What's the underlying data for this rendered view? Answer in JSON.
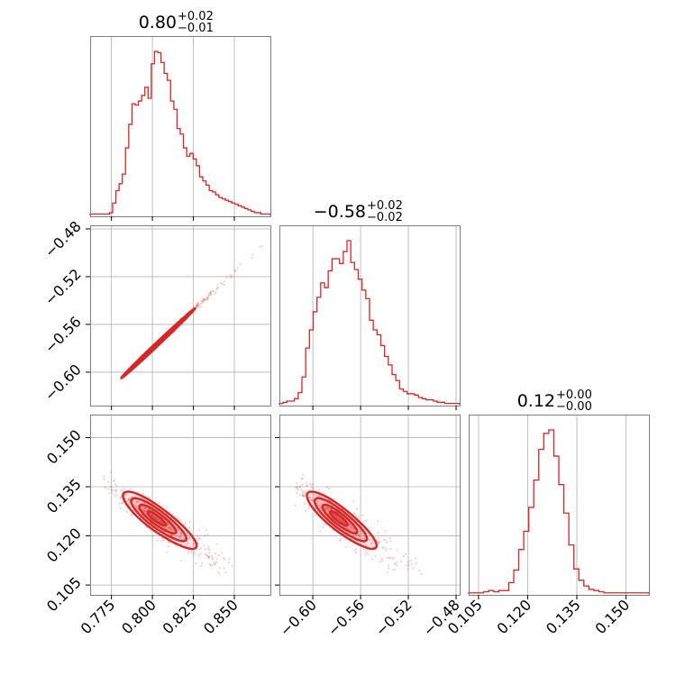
{
  "chart_data": {
    "type": "corner",
    "color": "#d62728",
    "parameters": [
      {
        "name": "",
        "range": [
          0.762,
          0.872
        ],
        "ticks": [
          0.775,
          0.8,
          0.825,
          0.85
        ],
        "tick_labels": [
          "0.775",
          "0.800",
          "0.825",
          "0.850"
        ],
        "title": {
          "value": "0.80",
          "upper": "+0.02",
          "lower": "−0.01"
        }
      },
      {
        "name": "",
        "range": [
          -0.628,
          -0.477
        ],
        "ticks": [
          -0.6,
          -0.56,
          -0.52,
          -0.48
        ],
        "tick_labels": [
          "−0.60",
          "−0.56",
          "−0.52",
          "−0.48"
        ],
        "title": {
          "value": "−0.58",
          "upper": "+0.02",
          "lower": "−0.02"
        }
      },
      {
        "name": "",
        "range": [
          0.102,
          0.157
        ],
        "ticks": [
          0.105,
          0.12,
          0.135,
          0.15
        ],
        "tick_labels": [
          "0.105",
          "0.120",
          "0.135",
          "0.150"
        ],
        "title": {
          "value": "0.12",
          "upper": "+0.00",
          "lower": "−0.00"
        }
      }
    ],
    "histograms": [
      {
        "x_start": 0.762,
        "x_end": 0.872,
        "counts": [
          1,
          1,
          1,
          1,
          1,
          1,
          2,
          9,
          18,
          23,
          30,
          49,
          66,
          81,
          80,
          83,
          87,
          93,
          85,
          110,
          119,
          118,
          111,
          103,
          98,
          83,
          77,
          63,
          59,
          49,
          43,
          45,
          41,
          36,
          28,
          25,
          22,
          18,
          17,
          15,
          13,
          12,
          11,
          10,
          9,
          8,
          7,
          6,
          5,
          4,
          3,
          2,
          2,
          1,
          1,
          1
        ]
      },
      {
        "x_start": -0.628,
        "x_end": -0.477,
        "counts": [
          1,
          2,
          3,
          3,
          5,
          10,
          23,
          47,
          62,
          77,
          89,
          101,
          97,
          111,
          121,
          121,
          117,
          127,
          136,
          118,
          112,
          104,
          95,
          88,
          70,
          62,
          58,
          49,
          40,
          33,
          25,
          20,
          13,
          11,
          9,
          9,
          8,
          6,
          5,
          4,
          4,
          3,
          2,
          2,
          1,
          1,
          1,
          1
        ]
      },
      {
        "x_start": 0.102,
        "x_end": 0.157,
        "counts": [
          1,
          1,
          1,
          2,
          3,
          2,
          3,
          3,
          10,
          21,
          39,
          55,
          76,
          100,
          127,
          141,
          144,
          121,
          96,
          71,
          43,
          22,
          12,
          7,
          4,
          3,
          2,
          1,
          1,
          1,
          1,
          1,
          1,
          1,
          1,
          1
        ]
      }
    ],
    "pairs": [
      {
        "x_param": 0,
        "y_param": 1,
        "center": [
          0.801,
          -0.579
        ],
        "sd": [
          0.01,
          0.013
        ],
        "rho": 0.997,
        "scatter_x_range": [
          0.775,
          0.872
        ],
        "scatter_y_range": [
          -0.605,
          -0.483
        ]
      },
      {
        "x_param": 0,
        "y_param": 2,
        "center": [
          0.802,
          0.1255
        ],
        "sd": [
          0.01,
          0.004
        ],
        "rho": -0.85,
        "scatter_x_range": [
          0.77,
          0.86
        ],
        "scatter_y_range": [
          0.108,
          0.14
        ]
      },
      {
        "x_param": 1,
        "y_param": 2,
        "center": [
          -0.579,
          0.1255
        ],
        "sd": [
          0.013,
          0.004
        ],
        "rho": -0.85,
        "scatter_x_range": [
          -0.615,
          -0.5
        ],
        "scatter_y_range": [
          0.108,
          0.14
        ]
      }
    ],
    "contour_levels": [
      0.5,
      1.0,
      1.5,
      2.0
    ],
    "grid": true
  }
}
